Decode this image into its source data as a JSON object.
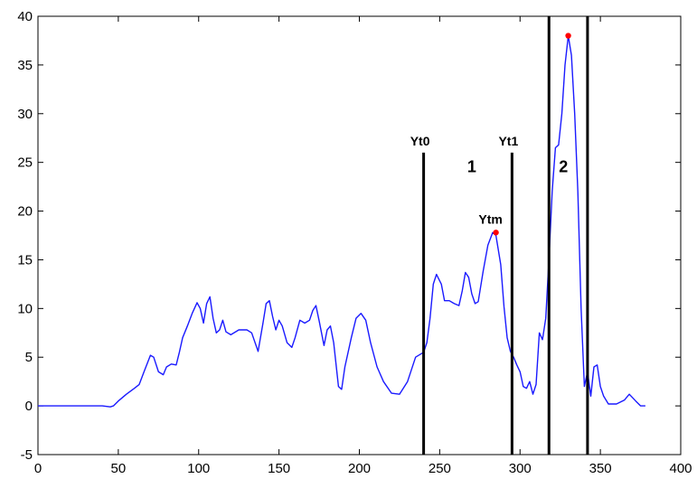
{
  "chart_data": {
    "type": "line",
    "title": "",
    "xlabel": "",
    "ylabel": "",
    "xlim": [
      0,
      400
    ],
    "ylim": [
      -5,
      40
    ],
    "x_ticks": [
      0,
      50,
      100,
      150,
      200,
      250,
      300,
      350,
      400
    ],
    "y_ticks": [
      -5,
      0,
      5,
      10,
      15,
      20,
      25,
      30,
      35,
      40
    ],
    "grid": false,
    "legend": "none",
    "line_color": "#1a1aff",
    "peak_color": "#ff0000",
    "series": [
      {
        "points": [
          [
            0,
            0
          ],
          [
            10,
            0
          ],
          [
            20,
            0
          ],
          [
            30,
            0
          ],
          [
            40,
            0
          ],
          [
            45,
            -0.1
          ],
          [
            47,
            0
          ],
          [
            50,
            0.5
          ],
          [
            55,
            1.2
          ],
          [
            60,
            1.8
          ],
          [
            63,
            2.2
          ],
          [
            66,
            3.5
          ],
          [
            70,
            5.2
          ],
          [
            72,
            5
          ],
          [
            75,
            3.5
          ],
          [
            78,
            3.2
          ],
          [
            80,
            4
          ],
          [
            83,
            4.3
          ],
          [
            86,
            4.2
          ],
          [
            88,
            5.5
          ],
          [
            90,
            7
          ],
          [
            93,
            8.2
          ],
          [
            96,
            9.5
          ],
          [
            99,
            10.6
          ],
          [
            101,
            10
          ],
          [
            103,
            8.5
          ],
          [
            105,
            10.5
          ],
          [
            107,
            11.2
          ],
          [
            109,
            9
          ],
          [
            111,
            7.5
          ],
          [
            113,
            7.8
          ],
          [
            115,
            8.8
          ],
          [
            117,
            7.6
          ],
          [
            120,
            7.3
          ],
          [
            125,
            7.8
          ],
          [
            130,
            7.8
          ],
          [
            133,
            7.5
          ],
          [
            137,
            5.6
          ],
          [
            140,
            8.5
          ],
          [
            142,
            10.5
          ],
          [
            144,
            10.8
          ],
          [
            146,
            9.2
          ],
          [
            148,
            7.8
          ],
          [
            150,
            8.8
          ],
          [
            152,
            8.2
          ],
          [
            155,
            6.5
          ],
          [
            158,
            6
          ],
          [
            160,
            7
          ],
          [
            163,
            8.8
          ],
          [
            166,
            8.5
          ],
          [
            169,
            8.8
          ],
          [
            171,
            9.8
          ],
          [
            173,
            10.3
          ],
          [
            175,
            8.7
          ],
          [
            178,
            6.2
          ],
          [
            180,
            7.8
          ],
          [
            182,
            8.2
          ],
          [
            184,
            6.5
          ],
          [
            187,
            2
          ],
          [
            189,
            1.7
          ],
          [
            191,
            4
          ],
          [
            195,
            7
          ],
          [
            198,
            9
          ],
          [
            201,
            9.5
          ],
          [
            204,
            8.8
          ],
          [
            207,
            6.5
          ],
          [
            211,
            4
          ],
          [
            215,
            2.5
          ],
          [
            220,
            1.3
          ],
          [
            225,
            1.2
          ],
          [
            230,
            2.5
          ],
          [
            235,
            5
          ],
          [
            240,
            5.5
          ],
          [
            242,
            6.5
          ],
          [
            244,
            9
          ],
          [
            246,
            12.5
          ],
          [
            248,
            13.5
          ],
          [
            251,
            12.5
          ],
          [
            253,
            10.8
          ],
          [
            256,
            10.8
          ],
          [
            259,
            10.5
          ],
          [
            262,
            10.3
          ],
          [
            264,
            11.8
          ],
          [
            266,
            13.7
          ],
          [
            268,
            13.2
          ],
          [
            270,
            11.5
          ],
          [
            272,
            10.5
          ],
          [
            274,
            10.7
          ],
          [
            277,
            13.8
          ],
          [
            280,
            16.5
          ],
          [
            283,
            17.8
          ],
          [
            285,
            17.5
          ],
          [
            288,
            14.5
          ],
          [
            290,
            10.2
          ],
          [
            292,
            7
          ],
          [
            294,
            5.6
          ],
          [
            296,
            5
          ],
          [
            298,
            4.2
          ],
          [
            300,
            3.5
          ],
          [
            302,
            2
          ],
          [
            304,
            1.8
          ],
          [
            306,
            2.5
          ],
          [
            308,
            1.2
          ],
          [
            310,
            2.2
          ],
          [
            312,
            7.5
          ],
          [
            314,
            6.8
          ],
          [
            316,
            9
          ],
          [
            318,
            15
          ],
          [
            320,
            22
          ],
          [
            322,
            26.5
          ],
          [
            324,
            26.8
          ],
          [
            326,
            30
          ],
          [
            328,
            35
          ],
          [
            330,
            38
          ],
          [
            332,
            36
          ],
          [
            334,
            30
          ],
          [
            336,
            22
          ],
          [
            338,
            10
          ],
          [
            340,
            2
          ],
          [
            342,
            3.5
          ],
          [
            344,
            1
          ],
          [
            346,
            4
          ],
          [
            348,
            4.2
          ],
          [
            350,
            2
          ],
          [
            352,
            1
          ],
          [
            355,
            0.2
          ],
          [
            360,
            0.2
          ],
          [
            365,
            0.6
          ],
          [
            368,
            1.2
          ],
          [
            372,
            0.5
          ],
          [
            375,
            0
          ],
          [
            378,
            0
          ]
        ]
      }
    ],
    "markers": [
      {
        "label": "Yt0",
        "x": 240
      },
      {
        "label": "Yt1",
        "x": 295
      }
    ],
    "boundaries": [
      {
        "x": 318,
        "y_from": -5,
        "y_to": 40
      },
      {
        "x": 342,
        "y_from": -5,
        "y_to": 40
      }
    ],
    "peaks": [
      {
        "label": "Ytm",
        "x": 285,
        "y": 17.8
      },
      {
        "label": "",
        "x": 330,
        "y": 38
      }
    ],
    "regions": [
      {
        "label": "1",
        "x": 270,
        "y": 24
      },
      {
        "label": "2",
        "x": 327,
        "y": 24
      }
    ]
  }
}
